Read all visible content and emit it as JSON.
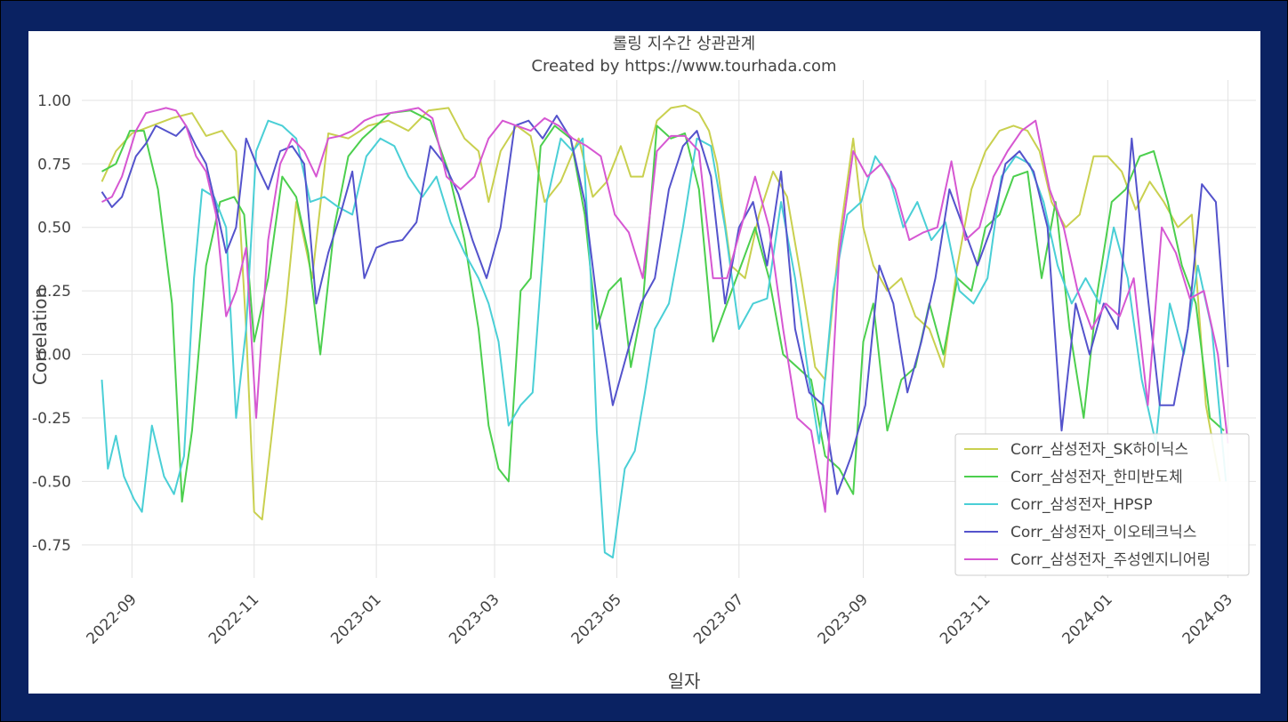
{
  "chart_data": {
    "type": "line",
    "title": "롤링 지수간 상관관계",
    "subtitle": "Created by https://www.tourhada.com",
    "xlabel": "일자",
    "ylabel": "Correlation",
    "ylim": [
      -0.88,
      1.08
    ],
    "xlim": [
      "2022-08-07",
      "2024-03-15"
    ],
    "grid": true,
    "legend_position": "lower-right",
    "y_ticks": [
      "1.00",
      "0.75",
      "0.50",
      "0.25",
      "0.00",
      "-0.25",
      "-0.50",
      "-0.75"
    ],
    "y_tick_values": [
      1.0,
      0.75,
      0.5,
      0.25,
      0.0,
      -0.25,
      -0.5,
      -0.75
    ],
    "x_ticks": [
      "2022-09",
      "2022-11",
      "2023-01",
      "2023-03",
      "2023-05",
      "2023-07",
      "2023-09",
      "2023-11",
      "2024-01",
      "2024-03"
    ],
    "series": [
      {
        "name": "Corr_삼성전자_SK하이닉스",
        "color": "#c9d04f",
        "x": [
          "2022-08-17",
          "2022-08-24",
          "2022-09-01",
          "2022-09-11",
          "2022-09-21",
          "2022-10-01",
          "2022-10-08",
          "2022-10-16",
          "2022-10-23",
          "2022-10-28",
          "2022-11-01",
          "2022-11-05",
          "2022-11-10",
          "2022-11-17",
          "2022-11-22",
          "2022-11-30",
          "2022-12-08",
          "2022-12-18",
          "2022-12-28",
          "2023-01-07",
          "2023-01-17",
          "2023-01-27",
          "2023-02-06",
          "2023-02-14",
          "2023-02-21",
          "2023-02-26",
          "2023-03-04",
          "2023-03-12",
          "2023-03-19",
          "2023-03-26",
          "2023-04-03",
          "2023-04-12",
          "2023-04-19",
          "2023-04-26",
          "2023-05-03",
          "2023-05-08",
          "2023-05-14",
          "2023-05-21",
          "2023-05-28",
          "2023-06-04",
          "2023-06-11",
          "2023-06-16",
          "2023-06-20",
          "2023-06-27",
          "2023-07-04",
          "2023-07-11",
          "2023-07-18",
          "2023-07-25",
          "2023-08-01",
          "2023-08-08",
          "2023-08-13",
          "2023-08-20",
          "2023-08-27",
          "2023-09-01",
          "2023-09-06",
          "2023-09-13",
          "2023-09-20",
          "2023-09-27",
          "2023-10-04",
          "2023-10-11",
          "2023-10-18",
          "2023-10-25",
          "2023-11-01",
          "2023-11-08",
          "2023-11-15",
          "2023-11-22",
          "2023-11-28",
          "2023-12-04",
          "2023-12-11",
          "2023-12-18",
          "2023-12-25",
          "2024-01-01",
          "2024-01-08",
          "2024-01-15",
          "2024-01-22",
          "2024-01-29",
          "2024-02-05",
          "2024-02-12",
          "2024-02-19",
          "2024-02-26"
        ],
        "y": [
          0.68,
          0.8,
          0.87,
          0.9,
          0.93,
          0.95,
          0.86,
          0.88,
          0.8,
          0.1,
          -0.62,
          -0.65,
          -0.3,
          0.2,
          0.6,
          0.3,
          0.87,
          0.85,
          0.9,
          0.92,
          0.88,
          0.96,
          0.97,
          0.85,
          0.8,
          0.6,
          0.8,
          0.9,
          0.86,
          0.6,
          0.68,
          0.85,
          0.62,
          0.68,
          0.82,
          0.7,
          0.7,
          0.92,
          0.97,
          0.98,
          0.95,
          0.88,
          0.75,
          0.35,
          0.3,
          0.55,
          0.72,
          0.62,
          0.3,
          -0.05,
          -0.1,
          0.45,
          0.85,
          0.5,
          0.35,
          0.25,
          0.3,
          0.15,
          0.1,
          -0.05,
          0.35,
          0.65,
          0.8,
          0.88,
          0.9,
          0.88,
          0.8,
          0.6,
          0.5,
          0.55,
          0.78,
          0.78,
          0.72,
          0.57,
          0.68,
          0.6,
          0.5,
          0.55,
          -0.2,
          -0.5
        ]
      },
      {
        "name": "Corr_삼성전자_한미반도체",
        "color": "#4ccf4e",
        "x": [
          "2022-08-17",
          "2022-08-24",
          "2022-08-31",
          "2022-09-07",
          "2022-09-14",
          "2022-09-21",
          "2022-09-26",
          "2022-10-01",
          "2022-10-08",
          "2022-10-15",
          "2022-10-22",
          "2022-10-27",
          "2022-11-01",
          "2022-11-08",
          "2022-11-15",
          "2022-11-22",
          "2022-11-28",
          "2022-12-04",
          "2022-12-11",
          "2022-12-18",
          "2022-12-25",
          "2023-01-01",
          "2023-01-08",
          "2023-01-18",
          "2023-01-28",
          "2023-02-06",
          "2023-02-14",
          "2023-02-21",
          "2023-02-26",
          "2023-03-03",
          "2023-03-08",
          "2023-03-14",
          "2023-03-19",
          "2023-03-24",
          "2023-03-31",
          "2023-04-08",
          "2023-04-15",
          "2023-04-21",
          "2023-04-27",
          "2023-05-03",
          "2023-05-08",
          "2023-05-14",
          "2023-05-21",
          "2023-05-28",
          "2023-06-04",
          "2023-06-11",
          "2023-06-18",
          "2023-06-25",
          "2023-07-02",
          "2023-07-09",
          "2023-07-16",
          "2023-07-23",
          "2023-07-30",
          "2023-08-06",
          "2023-08-13",
          "2023-08-20",
          "2023-08-27",
          "2023-09-01",
          "2023-09-06",
          "2023-09-13",
          "2023-09-20",
          "2023-09-27",
          "2023-10-04",
          "2023-10-11",
          "2023-10-18",
          "2023-10-25",
          "2023-11-01",
          "2023-11-08",
          "2023-11-15",
          "2023-11-22",
          "2023-11-29",
          "2023-12-06",
          "2023-12-13",
          "2023-12-20",
          "2023-12-27",
          "2024-01-03",
          "2024-01-10",
          "2024-01-17",
          "2024-01-24",
          "2024-01-31",
          "2024-02-07",
          "2024-02-14",
          "2024-02-21",
          "2024-02-28"
        ],
        "y": [
          0.72,
          0.75,
          0.88,
          0.88,
          0.65,
          0.2,
          -0.58,
          -0.3,
          0.35,
          0.6,
          0.62,
          0.55,
          0.05,
          0.3,
          0.7,
          0.62,
          0.4,
          0.0,
          0.5,
          0.78,
          0.85,
          0.9,
          0.95,
          0.96,
          0.92,
          0.72,
          0.45,
          0.1,
          -0.28,
          -0.45,
          -0.5,
          0.25,
          0.3,
          0.82,
          0.9,
          0.85,
          0.55,
          0.1,
          0.25,
          0.3,
          -0.05,
          0.2,
          0.9,
          0.85,
          0.87,
          0.65,
          0.05,
          0.2,
          0.35,
          0.5,
          0.3,
          0.0,
          -0.05,
          -0.1,
          -0.4,
          -0.45,
          -0.55,
          0.05,
          0.2,
          -0.3,
          -0.1,
          -0.05,
          0.2,
          0.0,
          0.3,
          0.25,
          0.5,
          0.55,
          0.7,
          0.72,
          0.3,
          0.6,
          0.1,
          -0.25,
          0.25,
          0.6,
          0.65,
          0.78,
          0.8,
          0.6,
          0.35,
          0.2,
          -0.25,
          -0.3
        ]
      },
      {
        "name": "Corr_삼성전자_HPSP",
        "color": "#4acfd6",
        "x": [
          "2022-08-17",
          "2022-08-20",
          "2022-08-24",
          "2022-08-28",
          "2022-09-02",
          "2022-09-06",
          "2022-09-11",
          "2022-09-17",
          "2022-09-22",
          "2022-09-27",
          "2022-10-02",
          "2022-10-06",
          "2022-10-12",
          "2022-10-18",
          "2022-10-23",
          "2022-10-28",
          "2022-11-02",
          "2022-11-08",
          "2022-11-15",
          "2022-11-22",
          "2022-11-29",
          "2022-12-06",
          "2022-12-13",
          "2022-12-20",
          "2022-12-27",
          "2023-01-03",
          "2023-01-10",
          "2023-01-17",
          "2023-01-24",
          "2023-01-31",
          "2023-02-07",
          "2023-02-14",
          "2023-02-21",
          "2023-02-26",
          "2023-03-03",
          "2023-03-08",
          "2023-03-14",
          "2023-03-20",
          "2023-03-27",
          "2023-04-03",
          "2023-04-09",
          "2023-04-14",
          "2023-04-18",
          "2023-04-21",
          "2023-04-25",
          "2023-04-29",
          "2023-05-05",
          "2023-05-10",
          "2023-05-15",
          "2023-05-20",
          "2023-05-27",
          "2023-06-03",
          "2023-06-10",
          "2023-06-17",
          "2023-06-24",
          "2023-07-01",
          "2023-07-08",
          "2023-07-15",
          "2023-07-22",
          "2023-07-29",
          "2023-08-05",
          "2023-08-10",
          "2023-08-17",
          "2023-08-24",
          "2023-08-31",
          "2023-09-07",
          "2023-09-14",
          "2023-09-21",
          "2023-09-28",
          "2023-10-05",
          "2023-10-12",
          "2023-10-19",
          "2023-10-26",
          "2023-11-02",
          "2023-11-09",
          "2023-11-16",
          "2023-11-23",
          "2023-11-30",
          "2023-12-07",
          "2023-12-14",
          "2023-12-21",
          "2023-12-28",
          "2024-01-04",
          "2024-01-11",
          "2024-01-18",
          "2024-01-25",
          "2024-02-01",
          "2024-02-08",
          "2024-02-15",
          "2024-02-22",
          "2024-02-29"
        ],
        "y": [
          -0.1,
          -0.45,
          -0.32,
          -0.48,
          -0.57,
          -0.62,
          -0.28,
          -0.48,
          -0.55,
          -0.4,
          0.3,
          0.65,
          0.62,
          0.5,
          -0.25,
          0.1,
          0.8,
          0.92,
          0.9,
          0.85,
          0.6,
          0.62,
          0.58,
          0.55,
          0.78,
          0.85,
          0.82,
          0.7,
          0.62,
          0.7,
          0.52,
          0.4,
          0.3,
          0.2,
          0.05,
          -0.28,
          -0.2,
          -0.15,
          0.6,
          0.85,
          0.8,
          0.85,
          0.3,
          -0.3,
          -0.78,
          -0.8,
          -0.45,
          -0.38,
          -0.15,
          0.1,
          0.2,
          0.5,
          0.85,
          0.82,
          0.5,
          0.1,
          0.2,
          0.22,
          0.6,
          0.3,
          -0.1,
          -0.35,
          0.25,
          0.55,
          0.6,
          0.78,
          0.7,
          0.5,
          0.6,
          0.45,
          0.52,
          0.25,
          0.2,
          0.3,
          0.7,
          0.78,
          0.75,
          0.6,
          0.35,
          0.2,
          0.3,
          0.2,
          0.5,
          0.3,
          -0.1,
          -0.35,
          0.2,
          0.0,
          0.35,
          0.1,
          -0.5
        ]
      },
      {
        "name": "Corr_삼성전자_이오테크닉스",
        "color": "#5453cc",
        "x": [
          "2022-08-17",
          "2022-08-22",
          "2022-08-27",
          "2022-09-03",
          "2022-09-08",
          "2022-09-13",
          "2022-09-18",
          "2022-09-23",
          "2022-09-28",
          "2022-10-03",
          "2022-10-08",
          "2022-10-13",
          "2022-10-18",
          "2022-10-23",
          "2022-10-28",
          "2022-11-02",
          "2022-11-08",
          "2022-11-14",
          "2022-11-20",
          "2022-11-26",
          "2022-12-02",
          "2022-12-08",
          "2022-12-14",
          "2022-12-20",
          "2022-12-26",
          "2023-01-01",
          "2023-01-07",
          "2023-01-14",
          "2023-01-21",
          "2023-01-28",
          "2023-02-04",
          "2023-02-11",
          "2023-02-18",
          "2023-02-25",
          "2023-03-04",
          "2023-03-11",
          "2023-03-18",
          "2023-03-25",
          "2023-04-01",
          "2023-04-08",
          "2023-04-15",
          "2023-04-22",
          "2023-04-29",
          "2023-05-06",
          "2023-05-13",
          "2023-05-20",
          "2023-05-27",
          "2023-06-03",
          "2023-06-10",
          "2023-06-17",
          "2023-06-24",
          "2023-07-01",
          "2023-07-08",
          "2023-07-15",
          "2023-07-22",
          "2023-07-29",
          "2023-08-05",
          "2023-08-12",
          "2023-08-19",
          "2023-08-26",
          "2023-09-02",
          "2023-09-09",
          "2023-09-16",
          "2023-09-23",
          "2023-09-30",
          "2023-10-07",
          "2023-10-14",
          "2023-10-21",
          "2023-10-28",
          "2023-11-04",
          "2023-11-11",
          "2023-11-18",
          "2023-11-25",
          "2023-12-02",
          "2023-12-09",
          "2023-12-16",
          "2023-12-23",
          "2023-12-30",
          "2024-01-06",
          "2024-01-13",
          "2024-01-20",
          "2024-01-27",
          "2024-02-03",
          "2024-02-10",
          "2024-02-17",
          "2024-02-24",
          "2024-03-01"
        ],
        "y": [
          0.64,
          0.58,
          0.62,
          0.78,
          0.83,
          0.9,
          0.88,
          0.86,
          0.9,
          0.82,
          0.75,
          0.58,
          0.4,
          0.5,
          0.85,
          0.75,
          0.65,
          0.8,
          0.82,
          0.75,
          0.2,
          0.4,
          0.55,
          0.72,
          0.3,
          0.42,
          0.44,
          0.45,
          0.52,
          0.82,
          0.75,
          0.63,
          0.45,
          0.3,
          0.5,
          0.9,
          0.92,
          0.85,
          0.94,
          0.85,
          0.6,
          0.15,
          -0.2,
          0.0,
          0.2,
          0.3,
          0.65,
          0.82,
          0.88,
          0.7,
          0.2,
          0.5,
          0.6,
          0.35,
          0.72,
          0.1,
          -0.15,
          -0.2,
          -0.55,
          -0.4,
          -0.2,
          0.35,
          0.2,
          -0.15,
          0.05,
          0.3,
          0.65,
          0.5,
          0.35,
          0.5,
          0.75,
          0.8,
          0.72,
          0.5,
          -0.3,
          0.2,
          0.0,
          0.2,
          0.1,
          0.85,
          0.3,
          -0.2,
          -0.2,
          0.1,
          0.67,
          0.6,
          -0.05
        ]
      },
      {
        "name": "Corr_삼성전자_주성엔지니어링",
        "color": "#d657d2",
        "x": [
          "2022-08-17",
          "2022-08-22",
          "2022-08-27",
          "2022-09-03",
          "2022-09-08",
          "2022-09-13",
          "2022-09-18",
          "2022-09-23",
          "2022-09-28",
          "2022-10-03",
          "2022-10-08",
          "2022-10-13",
          "2022-10-18",
          "2022-10-23",
          "2022-10-28",
          "2022-11-02",
          "2022-11-08",
          "2022-11-14",
          "2022-11-20",
          "2022-11-26",
          "2022-12-02",
          "2022-12-08",
          "2022-12-14",
          "2022-12-20",
          "2022-12-26",
          "2023-01-01",
          "2023-01-08",
          "2023-01-15",
          "2023-01-22",
          "2023-01-29",
          "2023-02-05",
          "2023-02-12",
          "2023-02-19",
          "2023-02-26",
          "2023-03-05",
          "2023-03-12",
          "2023-03-19",
          "2023-03-26",
          "2023-04-02",
          "2023-04-09",
          "2023-04-16",
          "2023-04-23",
          "2023-04-30",
          "2023-05-07",
          "2023-05-14",
          "2023-05-21",
          "2023-05-28",
          "2023-06-04",
          "2023-06-11",
          "2023-06-18",
          "2023-06-25",
          "2023-07-02",
          "2023-07-09",
          "2023-07-16",
          "2023-07-23",
          "2023-07-30",
          "2023-08-06",
          "2023-08-13",
          "2023-08-20",
          "2023-08-27",
          "2023-09-03",
          "2023-09-10",
          "2023-09-17",
          "2023-09-24",
          "2023-10-01",
          "2023-10-08",
          "2023-10-15",
          "2023-10-22",
          "2023-10-29",
          "2023-11-05",
          "2023-11-12",
          "2023-11-19",
          "2023-11-26",
          "2023-12-03",
          "2023-12-10",
          "2023-12-17",
          "2023-12-24",
          "2023-12-31",
          "2024-01-07",
          "2024-01-14",
          "2024-01-21",
          "2024-01-28",
          "2024-02-04",
          "2024-02-11",
          "2024-02-18",
          "2024-02-25",
          "2024-03-01"
        ],
        "y": [
          0.6,
          0.62,
          0.7,
          0.88,
          0.95,
          0.96,
          0.97,
          0.96,
          0.9,
          0.78,
          0.72,
          0.55,
          0.15,
          0.25,
          0.42,
          -0.25,
          0.45,
          0.75,
          0.85,
          0.8,
          0.7,
          0.85,
          0.86,
          0.88,
          0.92,
          0.94,
          0.95,
          0.96,
          0.97,
          0.93,
          0.7,
          0.65,
          0.7,
          0.85,
          0.92,
          0.9,
          0.88,
          0.93,
          0.9,
          0.85,
          0.82,
          0.78,
          0.55,
          0.48,
          0.3,
          0.8,
          0.86,
          0.86,
          0.8,
          0.3,
          0.3,
          0.5,
          0.7,
          0.5,
          0.1,
          -0.25,
          -0.3,
          -0.62,
          0.4,
          0.8,
          0.7,
          0.75,
          0.65,
          0.45,
          0.48,
          0.5,
          0.76,
          0.45,
          0.5,
          0.7,
          0.8,
          0.88,
          0.92,
          0.65,
          0.5,
          0.25,
          0.1,
          0.2,
          0.15,
          0.3,
          -0.2,
          0.5,
          0.4,
          0.22,
          0.25,
          0.0,
          -0.35
        ]
      }
    ]
  }
}
